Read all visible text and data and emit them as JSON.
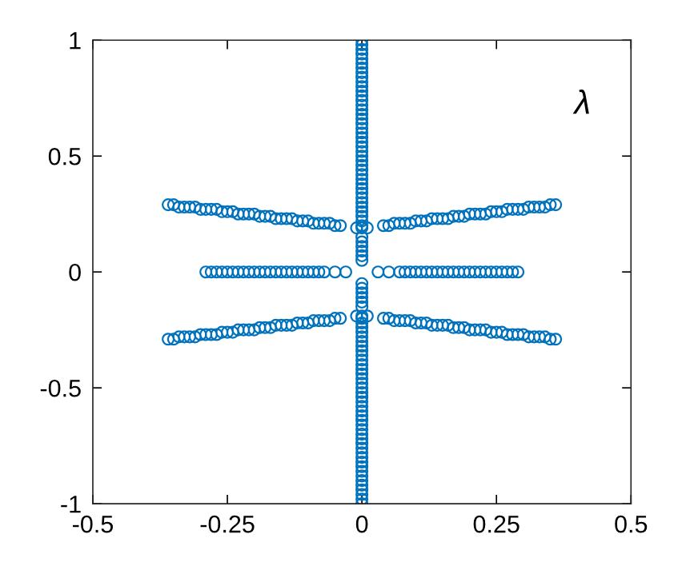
{
  "chart_data": {
    "type": "scatter",
    "annotations": [
      "λ"
    ],
    "xlim": [
      -0.5,
      0.5
    ],
    "ylim": [
      -1,
      1
    ],
    "xticks": [
      -0.5,
      -0.25,
      0,
      0.25,
      0.5
    ],
    "yticks": [
      -1,
      -0.5,
      0,
      0.5,
      1
    ],
    "grid": false,
    "marker": "circle",
    "series": [
      {
        "color": "#0072bd",
        "x": [
          0,
          0,
          0,
          0,
          0,
          0,
          0,
          0,
          0,
          0,
          0,
          0,
          0,
          0,
          0,
          0,
          0,
          0,
          0,
          0,
          0,
          0,
          0,
          0,
          0,
          0,
          0,
          0,
          0,
          0,
          0,
          0,
          0,
          0,
          0,
          0,
          0,
          0,
          0,
          0,
          0,
          0,
          0,
          0,
          0,
          0,
          0,
          0,
          0,
          0,
          0,
          0,
          0,
          0,
          0,
          0,
          0,
          0,
          0,
          0,
          0,
          0,
          0,
          0,
          0,
          0,
          0,
          0,
          0,
          0,
          0,
          0,
          0,
          0,
          0,
          0,
          0,
          0,
          0,
          0,
          0,
          0,
          0,
          0,
          0,
          0,
          0,
          0,
          0,
          0,
          0,
          0,
          0,
          0,
          0,
          0
        ],
        "values": [
          0.05,
          0.07,
          0.09,
          0.11,
          0.13,
          0.15,
          0.19,
          0.2,
          0.22,
          0.24,
          0.26,
          0.28,
          0.3,
          0.32,
          0.34,
          0.36,
          0.38,
          0.4,
          0.42,
          0.44,
          0.46,
          0.48,
          0.5,
          0.52,
          0.54,
          0.56,
          0.58,
          0.6,
          0.62,
          0.64,
          0.66,
          0.68,
          0.7,
          0.72,
          0.74,
          0.76,
          0.78,
          0.8,
          0.82,
          0.84,
          0.86,
          0.88,
          0.9,
          0.92,
          0.94,
          0.96,
          0.98,
          1.0,
          -0.05,
          -0.07,
          -0.09,
          -0.11,
          -0.13,
          -0.15,
          -0.19,
          -0.2,
          -0.22,
          -0.24,
          -0.26,
          -0.28,
          -0.3,
          -0.32,
          -0.34,
          -0.36,
          -0.38,
          -0.4,
          -0.42,
          -0.44,
          -0.46,
          -0.48,
          -0.5,
          -0.52,
          -0.54,
          -0.56,
          -0.58,
          -0.6,
          -0.62,
          -0.64,
          -0.66,
          -0.68,
          -0.7,
          -0.72,
          -0.74,
          -0.76,
          -0.78,
          -0.8,
          -0.82,
          -0.84,
          -0.86,
          -0.88,
          -0.9,
          -0.92,
          -0.94,
          -0.96,
          -0.98,
          -1.0
        ]
      },
      {
        "color": "#0072bd",
        "x": [
          0.03,
          0.05,
          0.07,
          0.08,
          0.09,
          0.1,
          0.11,
          0.12,
          0.13,
          0.14,
          0.15,
          0.16,
          0.17,
          0.18,
          0.19,
          0.2,
          0.21,
          0.22,
          0.23,
          0.24,
          0.25,
          0.26,
          0.27,
          0.28,
          0.29
        ],
        "values": [
          0,
          0,
          0,
          0,
          0,
          0,
          0,
          0,
          0,
          0,
          0,
          0,
          0,
          0,
          0,
          0,
          0,
          0,
          0,
          0,
          0,
          0,
          0,
          0,
          0
        ]
      },
      {
        "color": "#0072bd",
        "x": [
          -0.03,
          -0.05,
          -0.07,
          -0.08,
          -0.09,
          -0.1,
          -0.11,
          -0.12,
          -0.13,
          -0.14,
          -0.15,
          -0.16,
          -0.17,
          -0.18,
          -0.19,
          -0.2,
          -0.21,
          -0.22,
          -0.23,
          -0.24,
          -0.25,
          -0.26,
          -0.27,
          -0.28,
          -0.29
        ],
        "values": [
          0,
          0,
          0,
          0,
          0,
          0,
          0,
          0,
          0,
          0,
          0,
          0,
          0,
          0,
          0,
          0,
          0,
          0,
          0,
          0,
          0,
          0,
          0,
          0,
          0
        ]
      },
      {
        "color": "#0072bd",
        "x": [
          0.01,
          0.04,
          0.05,
          0.06,
          0.07,
          0.08,
          0.09,
          0.1,
          0.11,
          0.12,
          0.13,
          0.14,
          0.15,
          0.16,
          0.17,
          0.18,
          0.19,
          0.2,
          0.21,
          0.22,
          0.23,
          0.24,
          0.25,
          0.26,
          0.27,
          0.28,
          0.29,
          0.3,
          0.31,
          0.32,
          0.33,
          0.34,
          0.35,
          0.36
        ],
        "values": [
          0.19,
          0.2,
          0.2,
          0.21,
          0.21,
          0.21,
          0.21,
          0.22,
          0.22,
          0.22,
          0.23,
          0.23,
          0.23,
          0.23,
          0.24,
          0.24,
          0.24,
          0.25,
          0.25,
          0.25,
          0.25,
          0.26,
          0.26,
          0.26,
          0.27,
          0.27,
          0.27,
          0.27,
          0.28,
          0.28,
          0.28,
          0.28,
          0.29,
          0.29
        ]
      },
      {
        "color": "#0072bd",
        "x": [
          -0.01,
          -0.04,
          -0.05,
          -0.06,
          -0.07,
          -0.08,
          -0.09,
          -0.1,
          -0.11,
          -0.12,
          -0.13,
          -0.14,
          -0.15,
          -0.16,
          -0.17,
          -0.18,
          -0.19,
          -0.2,
          -0.21,
          -0.22,
          -0.23,
          -0.24,
          -0.25,
          -0.26,
          -0.27,
          -0.28,
          -0.29,
          -0.3,
          -0.31,
          -0.32,
          -0.33,
          -0.34,
          -0.35,
          -0.36
        ],
        "values": [
          0.19,
          0.2,
          0.2,
          0.21,
          0.21,
          0.21,
          0.21,
          0.22,
          0.22,
          0.22,
          0.23,
          0.23,
          0.23,
          0.23,
          0.24,
          0.24,
          0.24,
          0.25,
          0.25,
          0.25,
          0.25,
          0.26,
          0.26,
          0.26,
          0.27,
          0.27,
          0.27,
          0.27,
          0.28,
          0.28,
          0.28,
          0.28,
          0.29,
          0.29
        ]
      },
      {
        "color": "#0072bd",
        "x": [
          0.01,
          0.04,
          0.05,
          0.06,
          0.07,
          0.08,
          0.09,
          0.1,
          0.11,
          0.12,
          0.13,
          0.14,
          0.15,
          0.16,
          0.17,
          0.18,
          0.19,
          0.2,
          0.21,
          0.22,
          0.23,
          0.24,
          0.25,
          0.26,
          0.27,
          0.28,
          0.29,
          0.3,
          0.31,
          0.32,
          0.33,
          0.34,
          0.35,
          0.36
        ],
        "values": [
          -0.19,
          -0.2,
          -0.2,
          -0.21,
          -0.21,
          -0.21,
          -0.21,
          -0.22,
          -0.22,
          -0.22,
          -0.23,
          -0.23,
          -0.23,
          -0.23,
          -0.24,
          -0.24,
          -0.24,
          -0.25,
          -0.25,
          -0.25,
          -0.25,
          -0.26,
          -0.26,
          -0.26,
          -0.27,
          -0.27,
          -0.27,
          -0.27,
          -0.28,
          -0.28,
          -0.28,
          -0.28,
          -0.29,
          -0.29
        ]
      },
      {
        "color": "#0072bd",
        "x": [
          -0.01,
          -0.04,
          -0.05,
          -0.06,
          -0.07,
          -0.08,
          -0.09,
          -0.1,
          -0.11,
          -0.12,
          -0.13,
          -0.14,
          -0.15,
          -0.16,
          -0.17,
          -0.18,
          -0.19,
          -0.2,
          -0.21,
          -0.22,
          -0.23,
          -0.24,
          -0.25,
          -0.26,
          -0.27,
          -0.28,
          -0.29,
          -0.3,
          -0.31,
          -0.32,
          -0.33,
          -0.34,
          -0.35,
          -0.36
        ],
        "values": [
          -0.19,
          -0.2,
          -0.2,
          -0.21,
          -0.21,
          -0.21,
          -0.21,
          -0.22,
          -0.22,
          -0.22,
          -0.23,
          -0.23,
          -0.23,
          -0.23,
          -0.24,
          -0.24,
          -0.24,
          -0.25,
          -0.25,
          -0.25,
          -0.25,
          -0.26,
          -0.26,
          -0.26,
          -0.27,
          -0.27,
          -0.27,
          -0.27,
          -0.28,
          -0.28,
          -0.28,
          -0.28,
          -0.29,
          -0.29
        ]
      }
    ]
  }
}
